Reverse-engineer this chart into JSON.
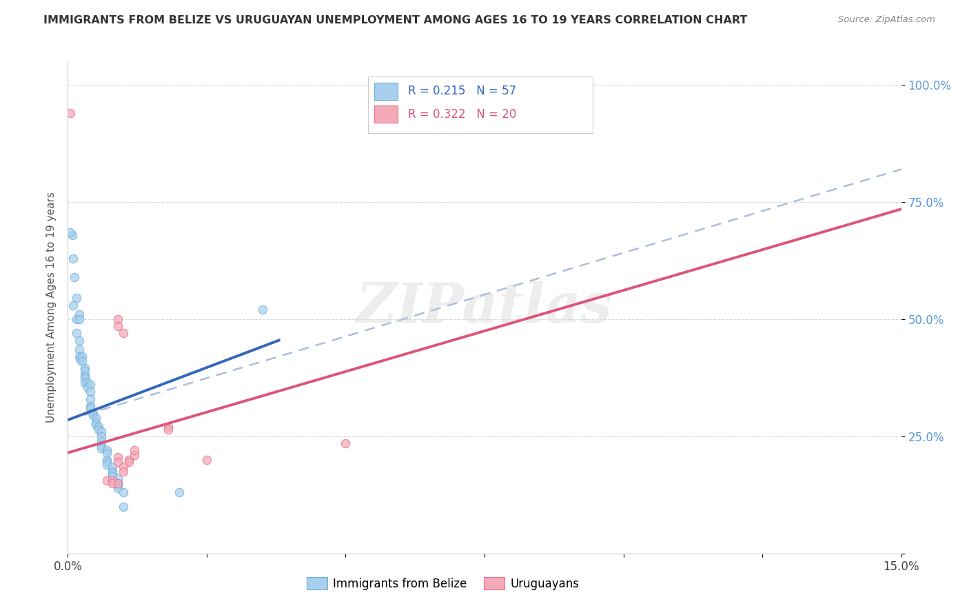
{
  "title": "IMMIGRANTS FROM BELIZE VS URUGUAYAN UNEMPLOYMENT AMONG AGES 16 TO 19 YEARS CORRELATION CHART",
  "source": "Source: ZipAtlas.com",
  "ylabel": "Unemployment Among Ages 16 to 19 years",
  "watermark": "ZIPatlas",
  "blue_R": "0.215",
  "blue_N": "57",
  "pink_R": "0.322",
  "pink_N": "20",
  "blue_scatter": [
    [
      0.0008,
      0.68
    ],
    [
      0.001,
      0.63
    ],
    [
      0.0012,
      0.59
    ],
    [
      0.0015,
      0.545
    ],
    [
      0.0015,
      0.5
    ],
    [
      0.0015,
      0.47
    ],
    [
      0.002,
      0.455
    ],
    [
      0.002,
      0.435
    ],
    [
      0.002,
      0.42
    ],
    [
      0.0022,
      0.415
    ],
    [
      0.0025,
      0.42
    ],
    [
      0.0025,
      0.41
    ],
    [
      0.003,
      0.395
    ],
    [
      0.003,
      0.39
    ],
    [
      0.003,
      0.38
    ],
    [
      0.003,
      0.375
    ],
    [
      0.003,
      0.365
    ],
    [
      0.0035,
      0.365
    ],
    [
      0.0035,
      0.355
    ],
    [
      0.004,
      0.36
    ],
    [
      0.004,
      0.345
    ],
    [
      0.004,
      0.33
    ],
    [
      0.004,
      0.315
    ],
    [
      0.004,
      0.31
    ],
    [
      0.0045,
      0.3
    ],
    [
      0.0045,
      0.295
    ],
    [
      0.005,
      0.29
    ],
    [
      0.005,
      0.28
    ],
    [
      0.005,
      0.275
    ],
    [
      0.0055,
      0.27
    ],
    [
      0.0055,
      0.265
    ],
    [
      0.006,
      0.26
    ],
    [
      0.006,
      0.25
    ],
    [
      0.006,
      0.24
    ],
    [
      0.006,
      0.23
    ],
    [
      0.006,
      0.225
    ],
    [
      0.007,
      0.22
    ],
    [
      0.007,
      0.215
    ],
    [
      0.007,
      0.2
    ],
    [
      0.007,
      0.195
    ],
    [
      0.007,
      0.19
    ],
    [
      0.008,
      0.185
    ],
    [
      0.008,
      0.175
    ],
    [
      0.008,
      0.17
    ],
    [
      0.008,
      0.165
    ],
    [
      0.009,
      0.16
    ],
    [
      0.009,
      0.15
    ],
    [
      0.009,
      0.145
    ],
    [
      0.009,
      0.14
    ],
    [
      0.01,
      0.13
    ],
    [
      0.01,
      0.1
    ],
    [
      0.035,
      0.52
    ],
    [
      0.0005,
      0.685
    ],
    [
      0.001,
      0.53
    ],
    [
      0.002,
      0.51
    ],
    [
      0.002,
      0.5
    ],
    [
      0.02,
      0.13
    ]
  ],
  "pink_scatter": [
    [
      0.0005,
      0.94
    ],
    [
      0.009,
      0.5
    ],
    [
      0.009,
      0.485
    ],
    [
      0.01,
      0.47
    ],
    [
      0.009,
      0.205
    ],
    [
      0.009,
      0.195
    ],
    [
      0.01,
      0.185
    ],
    [
      0.01,
      0.175
    ],
    [
      0.011,
      0.2
    ],
    [
      0.011,
      0.195
    ],
    [
      0.012,
      0.21
    ],
    [
      0.012,
      0.22
    ],
    [
      0.018,
      0.27
    ],
    [
      0.018,
      0.265
    ],
    [
      0.025,
      0.2
    ],
    [
      0.05,
      0.235
    ],
    [
      0.007,
      0.155
    ],
    [
      0.008,
      0.155
    ],
    [
      0.008,
      0.15
    ],
    [
      0.009,
      0.15
    ]
  ],
  "blue_solid_line": {
    "x": [
      0.0,
      0.038
    ],
    "y": [
      0.285,
      0.455
    ]
  },
  "blue_dashed_line": {
    "x": [
      0.0,
      0.15
    ],
    "y": [
      0.285,
      0.82
    ]
  },
  "pink_solid_line": {
    "x": [
      0.0,
      0.15
    ],
    "y": [
      0.215,
      0.735
    ]
  },
  "xmin": 0.0,
  "xmax": 0.15,
  "ymin": 0.0,
  "ymax": 1.05,
  "xticks": [
    0.0,
    0.025,
    0.05,
    0.075,
    0.1,
    0.125,
    0.15
  ],
  "yticks": [
    0.0,
    0.25,
    0.5,
    0.75,
    1.0
  ],
  "background_color": "#ffffff",
  "grid_color": "#d8d8d8",
  "blue_color": "#6baed6",
  "blue_fill": "#a8d0ee",
  "pink_color": "#e8708a",
  "pink_fill": "#f4aab8",
  "blue_line_color": "#3366bb",
  "blue_dash_color": "#aabedd",
  "pink_line_color": "#dd5577"
}
